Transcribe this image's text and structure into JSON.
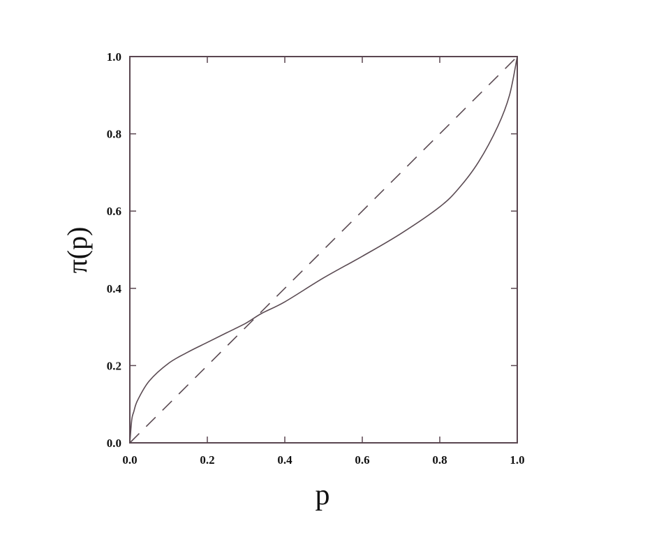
{
  "chart_data": {
    "type": "line",
    "title": "",
    "xlabel": "p",
    "ylabel": "π(p)",
    "xlim": [
      0,
      1
    ],
    "ylim": [
      0,
      1
    ],
    "grid": false,
    "x_ticks": [
      "0.0",
      "0.2",
      "0.4",
      "0.6",
      "0.8",
      "1.0"
    ],
    "y_ticks": [
      "0.0",
      "0.2",
      "0.4",
      "0.6",
      "0.8",
      "1.0"
    ],
    "series": [
      {
        "style": "solid",
        "color": "#5a4a52",
        "x": [
          0,
          0.005,
          0.01,
          0.02,
          0.05,
          0.1,
          0.15,
          0.2,
          0.25,
          0.3,
          0.34,
          0.4,
          0.5,
          0.6,
          0.7,
          0.8,
          0.85,
          0.9,
          0.95,
          0.98,
          1.0
        ],
        "y": [
          0,
          0.06,
          0.08,
          0.11,
          0.16,
          0.206,
          0.235,
          0.26,
          0.285,
          0.31,
          0.335,
          0.365,
          0.427,
          0.483,
          0.542,
          0.611,
          0.66,
          0.727,
          0.82,
          0.9,
          1.0
        ]
      },
      {
        "style": "dashed",
        "color": "#5a4a52",
        "x": [
          0,
          1
        ],
        "y": [
          0,
          1
        ]
      }
    ]
  }
}
